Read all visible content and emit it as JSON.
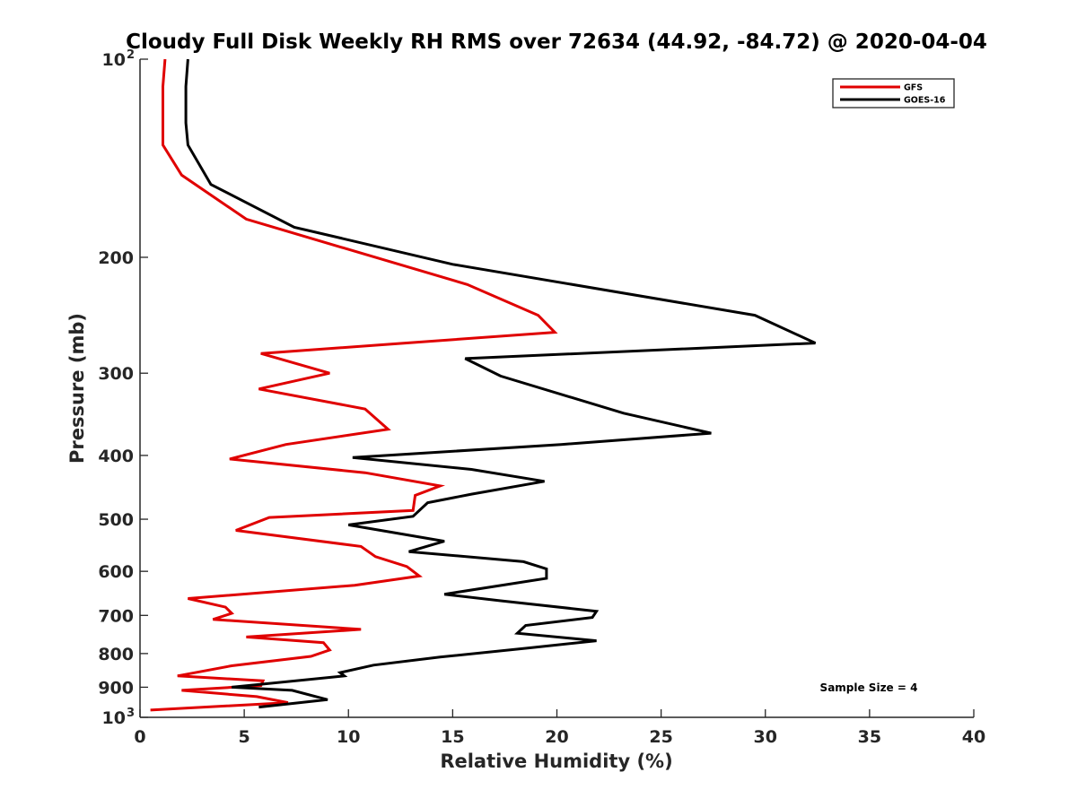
{
  "chart_data": {
    "type": "line",
    "title": "Cloudy Full Disk Weekly RH RMS over 72634 (44.92, -84.72) @ 2020-04-04",
    "xlabel": "Relative Humidity (%)",
    "ylabel": "Pressure (mb)",
    "xlim": [
      0,
      40
    ],
    "ylim": [
      100,
      1000
    ],
    "y_scale": "log",
    "y_reversed": true,
    "x_ticks": [
      "0",
      "5",
      "10",
      "15",
      "20",
      "25",
      "30",
      "35",
      "40"
    ],
    "y_ticks": [
      {
        "value": 100,
        "base": "10",
        "exp": "2"
      },
      {
        "value": 200,
        "label": "200"
      },
      {
        "value": 300,
        "label": "300"
      },
      {
        "value": 400,
        "label": "400"
      },
      {
        "value": 500,
        "label": "500"
      },
      {
        "value": 600,
        "label": "600"
      },
      {
        "value": 700,
        "label": "700"
      },
      {
        "value": 800,
        "label": "800"
      },
      {
        "value": 900,
        "label": "900"
      },
      {
        "value": 1000,
        "base": "10",
        "exp": "3"
      }
    ],
    "grid": false,
    "legend_position": "top-right",
    "annotation": "Sample Size = 4",
    "series": [
      {
        "name": "GFS",
        "color": "#e00000",
        "x": [
          1.2,
          1.1,
          1.1,
          1.1,
          2.0,
          5.1,
          15.7,
          19.1,
          19.9,
          5.8,
          9.1,
          5.7,
          10.8,
          11.9,
          7.0,
          4.3,
          10.8,
          14.4,
          13.2,
          13.1,
          6.2,
          4.6,
          10.6,
          11.3,
          12.8,
          13.4,
          10.3,
          2.3,
          4.1,
          4.4,
          3.5,
          10.6,
          5.1,
          8.8,
          9.1,
          8.2,
          4.4,
          1.8,
          5.9,
          5.8,
          2.0,
          5.6,
          7.1,
          0.5
        ],
        "y": [
          100,
          110,
          125,
          135,
          150,
          175,
          220,
          245,
          260,
          280,
          300,
          317,
          340,
          365,
          385,
          405,
          425,
          445,
          460,
          485,
          497,
          520,
          550,
          570,
          590,
          610,
          630,
          660,
          680,
          695,
          710,
          735,
          755,
          770,
          790,
          808,
          835,
          865,
          880,
          895,
          910,
          930,
          950,
          975
        ]
      },
      {
        "name": "GOES-16",
        "color": "#000000",
        "x": [
          2.3,
          2.2,
          2.2,
          2.3,
          3.4,
          7.4,
          15.0,
          29.5,
          32.4,
          15.6,
          17.3,
          23.2,
          27.4,
          20.2,
          10.2,
          15.9,
          19.4,
          15.9,
          13.8,
          13.1,
          10.0,
          14.6,
          12.9,
          18.4,
          19.5,
          19.5,
          14.6,
          17.3,
          21.9,
          21.7,
          18.5,
          18.1,
          21.9,
          18.6,
          14.4,
          11.2,
          9.6,
          9.8,
          4.4,
          7.3,
          9.0,
          5.7
        ],
        "y": [
          100,
          110,
          125,
          135,
          155,
          180,
          205,
          245,
          270,
          285,
          303,
          345,
          370,
          385,
          403,
          420,
          438,
          458,
          472,
          495,
          510,
          540,
          560,
          580,
          595,
          615,
          650,
          665,
          690,
          705,
          725,
          745,
          765,
          785,
          810,
          833,
          855,
          865,
          900,
          910,
          940,
          965
        ]
      }
    ]
  }
}
